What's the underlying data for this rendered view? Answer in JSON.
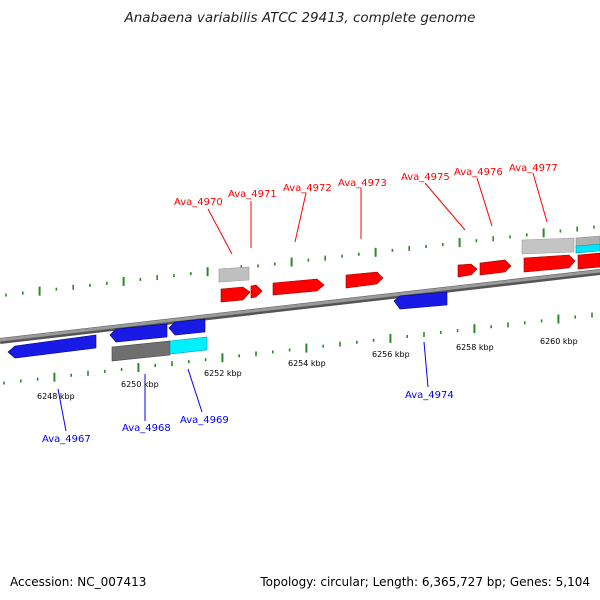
{
  "title": "Anabaena variabilis ATCC 29413, complete genome",
  "footer": {
    "accession": "Accession: NC_007413",
    "summary": "Topology: circular; Length: 6,365,727 bp; Genes: 5,104"
  },
  "scale_labels": [
    "6248 kbp",
    "6250 kbp",
    "6252 kbp",
    "6254 kbp",
    "6256 kbp",
    "6258 kbp",
    "6260 kbp"
  ],
  "genes_forward": [
    "Ava_4970",
    "Ava_4971",
    "Ava_4972",
    "Ava_4973",
    "Ava_4975",
    "Ava_4976",
    "Ava_4977"
  ],
  "genes_reverse": [
    "Ava_4967",
    "Ava_4968",
    "Ava_4969",
    "Ava_4974"
  ],
  "colors": {
    "forward": "#ff0000",
    "reverse": "#0000ff",
    "tick": "#2a8a2a",
    "backbone": "#808080",
    "cyan": "#00ffff",
    "grey": "#c8c8c8"
  }
}
